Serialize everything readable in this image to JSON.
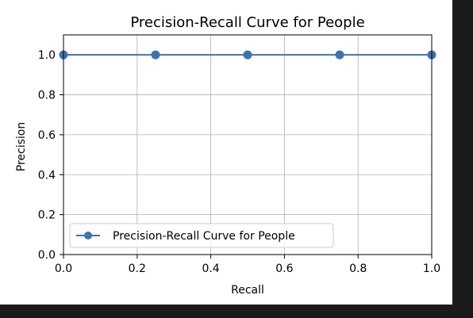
{
  "chart_data": {
    "type": "line",
    "title": "Precision-Recall Curve for People",
    "xlabel": "Recall",
    "ylabel": "Precision",
    "xlim": [
      0.0,
      1.0
    ],
    "ylim": [
      0.0,
      1.1
    ],
    "xticks": [
      "0.0",
      "0.2",
      "0.4",
      "0.6",
      "0.8",
      "1.0"
    ],
    "yticks": [
      "0.0",
      "0.2",
      "0.4",
      "0.6",
      "0.8",
      "1.0"
    ],
    "grid": true,
    "legend_position": "lower-left",
    "series": [
      {
        "name": "Precision-Recall Curve for People",
        "color": "#3f72af",
        "marker": "circle",
        "x": [
          0.0,
          0.25,
          0.5,
          0.75,
          1.0
        ],
        "y": [
          1.0,
          1.0,
          1.0,
          1.0,
          1.0
        ]
      }
    ]
  }
}
